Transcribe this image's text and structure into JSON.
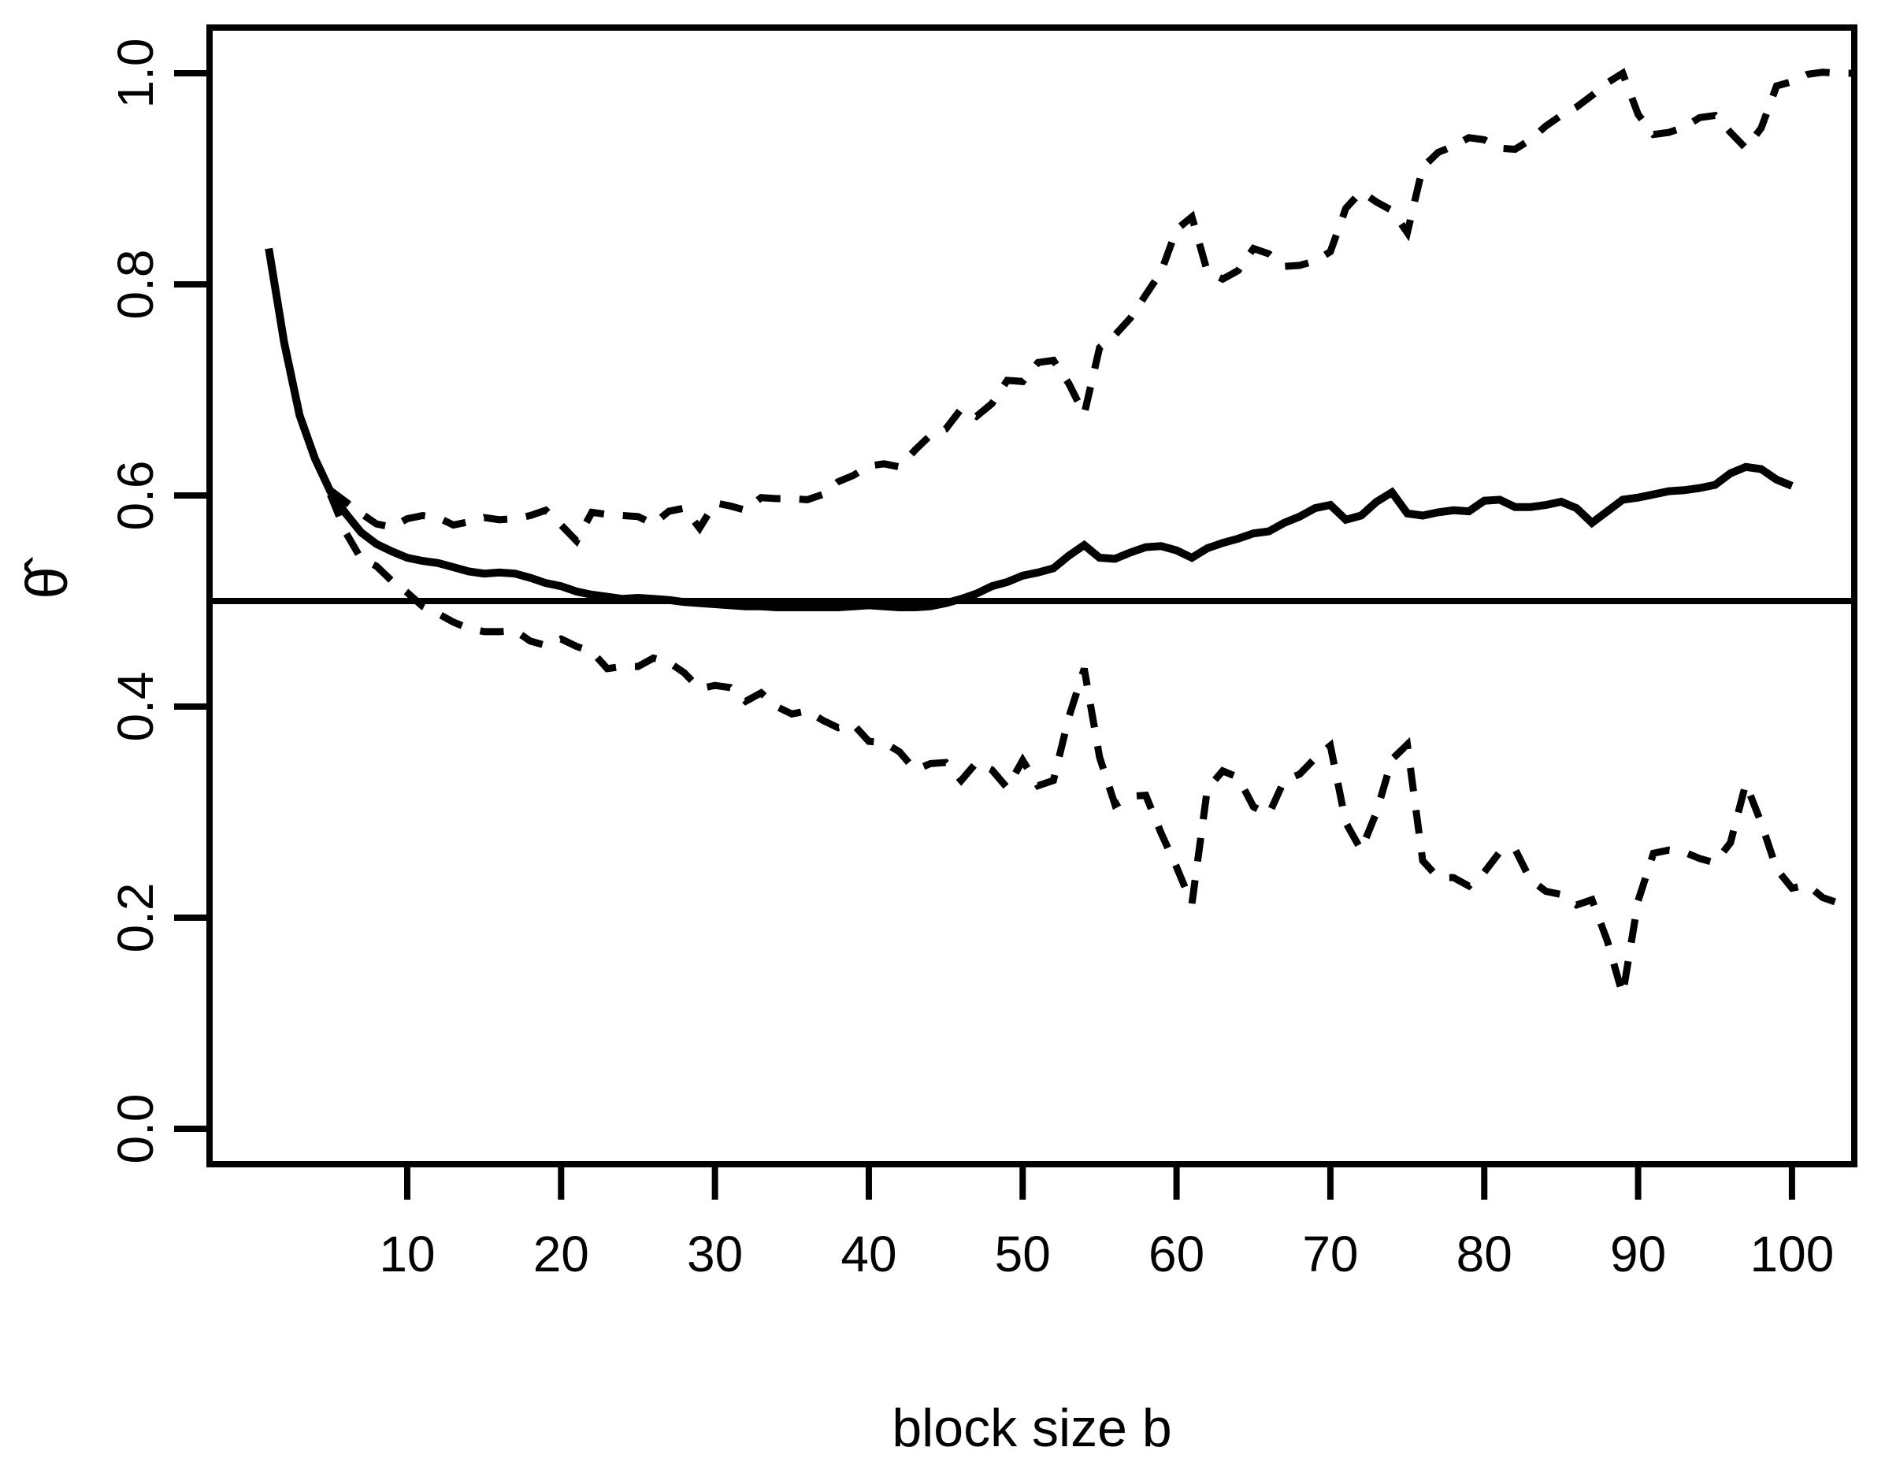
{
  "figure": {
    "background_color": "#ffffff",
    "ink_color": "#000000"
  },
  "chart_data": {
    "type": "line",
    "title": "",
    "xlabel": "block size b",
    "ylabel": "θ̂",
    "grid": false,
    "legend": "none",
    "x_range": [
      -2.85,
      104.05
    ],
    "y_range": [
      -0.0336,
      1.0433
    ],
    "x_ticks": [
      10,
      20,
      30,
      40,
      50,
      60,
      70,
      80,
      90,
      100
    ],
    "y_ticks": [
      0.0,
      0.2,
      0.4,
      0.6,
      0.8,
      1.0
    ],
    "y_tick_labels": [
      "0.0",
      "0.2",
      "0.4",
      "0.6",
      "0.8",
      "1.0"
    ],
    "series": [
      {
        "name": "theta-hat-estimate",
        "style": "solid",
        "stroke_width": 10,
        "points": [
          [
            1,
            0.834
          ],
          [
            2,
            0.745
          ],
          [
            3,
            0.676
          ],
          [
            4,
            0.635
          ],
          [
            5,
            0.604
          ],
          [
            6,
            0.583
          ],
          [
            7,
            0.565
          ],
          [
            8,
            0.554
          ],
          [
            9,
            0.547
          ],
          [
            10,
            0.541
          ],
          [
            11,
            0.538
          ],
          [
            12,
            0.536
          ],
          [
            13,
            0.532
          ],
          [
            14,
            0.528
          ],
          [
            15,
            0.526
          ],
          [
            16,
            0.527
          ],
          [
            17,
            0.526
          ],
          [
            18,
            0.522
          ],
          [
            19,
            0.517
          ],
          [
            20,
            0.514
          ],
          [
            21,
            0.509
          ],
          [
            22,
            0.506
          ],
          [
            23,
            0.504
          ],
          [
            24,
            0.502
          ],
          [
            25,
            0.503
          ],
          [
            26,
            0.502
          ],
          [
            27,
            0.501
          ],
          [
            28,
            0.499
          ],
          [
            29,
            0.498
          ],
          [
            30,
            0.497
          ],
          [
            31,
            0.496
          ],
          [
            32,
            0.495
          ],
          [
            33,
            0.495
          ],
          [
            34,
            0.494
          ],
          [
            35,
            0.494
          ],
          [
            36,
            0.494
          ],
          [
            37,
            0.494
          ],
          [
            38,
            0.494
          ],
          [
            39,
            0.495
          ],
          [
            40,
            0.496
          ],
          [
            41,
            0.495
          ],
          [
            42,
            0.494
          ],
          [
            43,
            0.494
          ],
          [
            44,
            0.495
          ],
          [
            45,
            0.498
          ],
          [
            46,
            0.502
          ],
          [
            47,
            0.507
          ],
          [
            48,
            0.514
          ],
          [
            49,
            0.518
          ],
          [
            50,
            0.524
          ],
          [
            51,
            0.527
          ],
          [
            52,
            0.531
          ],
          [
            53,
            0.543
          ],
          [
            54,
            0.553
          ],
          [
            55,
            0.541
          ],
          [
            56,
            0.54
          ],
          [
            57,
            0.546
          ],
          [
            58,
            0.551
          ],
          [
            59,
            0.552
          ],
          [
            60,
            0.548
          ],
          [
            61,
            0.541
          ],
          [
            62,
            0.55
          ],
          [
            63,
            0.555
          ],
          [
            64,
            0.559
          ],
          [
            65,
            0.564
          ],
          [
            66,
            0.566
          ],
          [
            67,
            0.574
          ],
          [
            68,
            0.58
          ],
          [
            69,
            0.588
          ],
          [
            70,
            0.591
          ],
          [
            71,
            0.577
          ],
          [
            72,
            0.581
          ],
          [
            73,
            0.594
          ],
          [
            74,
            0.603
          ],
          [
            75,
            0.583
          ],
          [
            76,
            0.581
          ],
          [
            77,
            0.584
          ],
          [
            78,
            0.586
          ],
          [
            79,
            0.585
          ],
          [
            80,
            0.595
          ],
          [
            81,
            0.596
          ],
          [
            82,
            0.589
          ],
          [
            83,
            0.589
          ],
          [
            84,
            0.591
          ],
          [
            85,
            0.594
          ],
          [
            86,
            0.588
          ],
          [
            87,
            0.574
          ],
          [
            88,
            0.585
          ],
          [
            89,
            0.596
          ],
          [
            90,
            0.598
          ],
          [
            91,
            0.601
          ],
          [
            92,
            0.604
          ],
          [
            93,
            0.605
          ],
          [
            94,
            0.607
          ],
          [
            95,
            0.61
          ],
          [
            96,
            0.621
          ],
          [
            97,
            0.627
          ],
          [
            98,
            0.625
          ],
          [
            99,
            0.615
          ],
          [
            100,
            0.609
          ]
        ]
      },
      {
        "name": "upper-confidence-band",
        "style": "dashed",
        "stroke_width": 9,
        "points": [
          [
            5,
            0.605
          ],
          [
            6,
            0.594
          ],
          [
            7,
            0.583
          ],
          [
            8,
            0.573
          ],
          [
            9,
            0.57
          ],
          [
            10,
            0.578
          ],
          [
            11,
            0.581
          ],
          [
            12,
            0.579
          ],
          [
            13,
            0.572
          ],
          [
            14,
            0.575
          ],
          [
            15,
            0.579
          ],
          [
            16,
            0.577
          ],
          [
            17,
            0.578
          ],
          [
            18,
            0.581
          ],
          [
            19,
            0.586
          ],
          [
            20,
            0.572
          ],
          [
            21,
            0.557
          ],
          [
            22,
            0.584
          ],
          [
            23,
            0.582
          ],
          [
            24,
            0.581
          ],
          [
            25,
            0.58
          ],
          [
            26,
            0.573
          ],
          [
            27,
            0.585
          ],
          [
            28,
            0.588
          ],
          [
            29,
            0.569
          ],
          [
            30,
            0.593
          ],
          [
            31,
            0.59
          ],
          [
            32,
            0.586
          ],
          [
            33,
            0.598
          ],
          [
            34,
            0.597
          ],
          [
            35,
            0.597
          ],
          [
            36,
            0.596
          ],
          [
            37,
            0.601
          ],
          [
            38,
            0.613
          ],
          [
            39,
            0.619
          ],
          [
            40,
            0.628
          ],
          [
            41,
            0.63
          ],
          [
            42,
            0.627
          ],
          [
            43,
            0.643
          ],
          [
            44,
            0.657
          ],
          [
            45,
            0.663
          ],
          [
            46,
            0.682
          ],
          [
            47,
            0.675
          ],
          [
            48,
            0.687
          ],
          [
            49,
            0.709
          ],
          [
            50,
            0.708
          ],
          [
            51,
            0.726
          ],
          [
            52,
            0.728
          ],
          [
            53,
            0.706
          ],
          [
            54,
            0.677
          ],
          [
            55,
            0.74
          ],
          [
            56,
            0.752
          ],
          [
            57,
            0.768
          ],
          [
            58,
            0.79
          ],
          [
            59,
            0.812
          ],
          [
            60,
            0.852
          ],
          [
            61,
            0.864
          ],
          [
            62,
            0.812
          ],
          [
            63,
            0.805
          ],
          [
            64,
            0.813
          ],
          [
            65,
            0.834
          ],
          [
            66,
            0.829
          ],
          [
            67,
            0.817
          ],
          [
            68,
            0.818
          ],
          [
            69,
            0.822
          ],
          [
            70,
            0.831
          ],
          [
            71,
            0.872
          ],
          [
            72,
            0.888
          ],
          [
            73,
            0.878
          ],
          [
            74,
            0.87
          ],
          [
            75,
            0.849
          ],
          [
            76,
            0.911
          ],
          [
            77,
            0.925
          ],
          [
            78,
            0.931
          ],
          [
            79,
            0.939
          ],
          [
            80,
            0.937
          ],
          [
            81,
            0.929
          ],
          [
            82,
            0.928
          ],
          [
            83,
            0.937
          ],
          [
            84,
            0.95
          ],
          [
            85,
            0.96
          ],
          [
            86,
            0.968
          ],
          [
            87,
            0.979
          ],
          [
            88,
            0.991
          ],
          [
            89,
            1.0
          ],
          [
            90,
            0.961
          ],
          [
            91,
            0.942
          ],
          [
            92,
            0.944
          ],
          [
            93,
            0.949
          ],
          [
            94,
            0.958
          ],
          [
            95,
            0.96
          ],
          [
            96,
            0.944
          ],
          [
            97,
            0.929
          ],
          [
            98,
            0.948
          ],
          [
            99,
            0.988
          ],
          [
            100,
            0.992
          ],
          [
            101,
            0.999
          ],
          [
            102,
            1.001
          ],
          [
            103,
            1.0
          ],
          [
            104,
            1.0
          ]
        ]
      },
      {
        "name": "lower-confidence-band",
        "style": "dashed",
        "stroke_width": 9,
        "points": [
          [
            5,
            0.601
          ],
          [
            6,
            0.565
          ],
          [
            7,
            0.54
          ],
          [
            8,
            0.533
          ],
          [
            9,
            0.519
          ],
          [
            10,
            0.508
          ],
          [
            11,
            0.495
          ],
          [
            12,
            0.488
          ],
          [
            13,
            0.48
          ],
          [
            14,
            0.474
          ],
          [
            15,
            0.471
          ],
          [
            16,
            0.471
          ],
          [
            17,
            0.472
          ],
          [
            18,
            0.462
          ],
          [
            19,
            0.458
          ],
          [
            20,
            0.464
          ],
          [
            21,
            0.457
          ],
          [
            22,
            0.452
          ],
          [
            23,
            0.436
          ],
          [
            24,
            0.438
          ],
          [
            25,
            0.438
          ],
          [
            26,
            0.446
          ],
          [
            27,
            0.442
          ],
          [
            28,
            0.432
          ],
          [
            29,
            0.417
          ],
          [
            30,
            0.42
          ],
          [
            31,
            0.418
          ],
          [
            32,
            0.405
          ],
          [
            33,
            0.413
          ],
          [
            34,
            0.4
          ],
          [
            35,
            0.393
          ],
          [
            36,
            0.396
          ],
          [
            37,
            0.387
          ],
          [
            38,
            0.38
          ],
          [
            39,
            0.383
          ],
          [
            40,
            0.367
          ],
          [
            41,
            0.366
          ],
          [
            42,
            0.357
          ],
          [
            43,
            0.34
          ],
          [
            44,
            0.346
          ],
          [
            45,
            0.347
          ],
          [
            46,
            0.33
          ],
          [
            47,
            0.347
          ],
          [
            48,
            0.34
          ],
          [
            49,
            0.323
          ],
          [
            50,
            0.349
          ],
          [
            51,
            0.325
          ],
          [
            52,
            0.33
          ],
          [
            53,
            0.39
          ],
          [
            54,
            0.436
          ],
          [
            55,
            0.352
          ],
          [
            56,
            0.307
          ],
          [
            57,
            0.315
          ],
          [
            58,
            0.316
          ],
          [
            59,
            0.28
          ],
          [
            60,
            0.248
          ],
          [
            61,
            0.213
          ],
          [
            62,
            0.322
          ],
          [
            63,
            0.339
          ],
          [
            64,
            0.333
          ],
          [
            65,
            0.305
          ],
          [
            66,
            0.298
          ],
          [
            67,
            0.33
          ],
          [
            68,
            0.336
          ],
          [
            69,
            0.351
          ],
          [
            70,
            0.363
          ],
          [
            71,
            0.29
          ],
          [
            72,
            0.264
          ],
          [
            73,
            0.3
          ],
          [
            74,
            0.35
          ],
          [
            75,
            0.364
          ],
          [
            76,
            0.254
          ],
          [
            77,
            0.238
          ],
          [
            78,
            0.238
          ],
          [
            79,
            0.23
          ],
          [
            80,
            0.243
          ],
          [
            81,
            0.262
          ],
          [
            82,
            0.265
          ],
          [
            83,
            0.236
          ],
          [
            84,
            0.225
          ],
          [
            85,
            0.222
          ],
          [
            86,
            0.212
          ],
          [
            87,
            0.217
          ],
          [
            88,
            0.178
          ],
          [
            89,
            0.127
          ],
          [
            90,
            0.216
          ],
          [
            91,
            0.261
          ],
          [
            92,
            0.264
          ],
          [
            93,
            0.262
          ],
          [
            94,
            0.256
          ],
          [
            95,
            0.252
          ],
          [
            96,
            0.271
          ],
          [
            97,
            0.327
          ],
          [
            98,
            0.29
          ],
          [
            99,
            0.246
          ],
          [
            100,
            0.228
          ],
          [
            101,
            0.231
          ],
          [
            102,
            0.219
          ],
          [
            103,
            0.214
          ],
          [
            104,
            0.218
          ]
        ]
      },
      {
        "name": "reference-line-0.5",
        "style": "solid",
        "stroke_width": 8,
        "points": [
          [
            -2.85,
            0.5
          ],
          [
            104.05,
            0.5
          ]
        ]
      }
    ]
  }
}
